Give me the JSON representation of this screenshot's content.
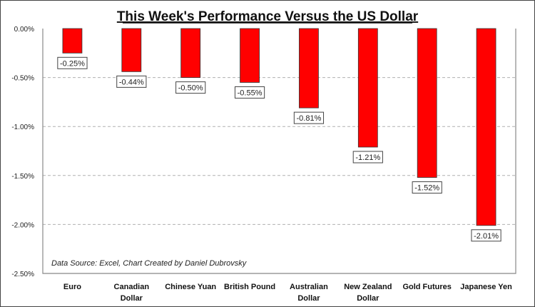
{
  "chart_data": {
    "type": "bar",
    "title": "This Week's Performance Versus the US Dollar",
    "xlabel": "",
    "ylabel": "",
    "categories": [
      [
        "Euro"
      ],
      [
        "Canadian",
        "Dollar"
      ],
      [
        "Chinese Yuan"
      ],
      [
        "British Pound"
      ],
      [
        "Australian",
        "Dollar"
      ],
      [
        "New Zealand",
        "Dollar"
      ],
      [
        "Gold Futures"
      ],
      [
        "Japanese Yen"
      ]
    ],
    "values": [
      -0.25,
      -0.44,
      -0.5,
      -0.55,
      -0.81,
      -1.21,
      -1.52,
      -2.01
    ],
    "data_labels": [
      "-0.25%",
      "-0.44%",
      "-0.50%",
      "-0.55%",
      "-0.81%",
      "-1.21%",
      "-1.52%",
      "-2.01%"
    ],
    "ylim": [
      -2.5,
      0
    ],
    "yticks": [
      0,
      -0.5,
      -1,
      -1.5,
      -2,
      -2.5
    ],
    "ytick_labels": [
      "0.00%",
      "-0.50%",
      "-1.00%",
      "-1.50%",
      "-2.00%",
      "-2.50%"
    ],
    "grid": true,
    "bar_color": "#ff0000",
    "annotation": "Data Source: Excel, Chart Created by Daniel Dubrovsky"
  }
}
